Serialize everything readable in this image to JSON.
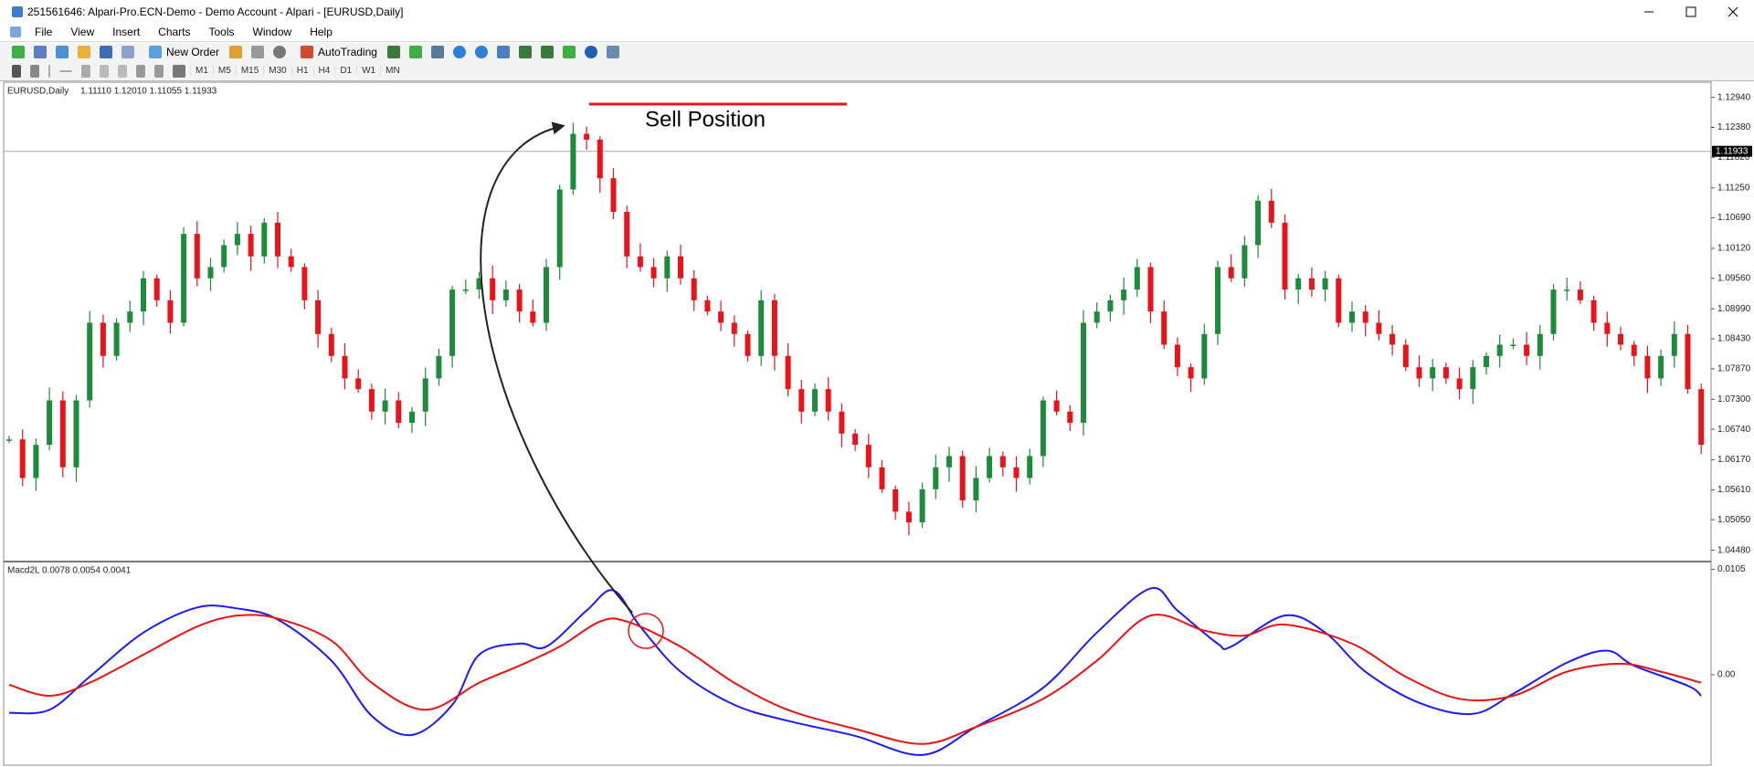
{
  "window": {
    "title": "251561646: Alpari-Pro.ECN-Demo - Demo Account - Alpari - [EURUSD,Daily]",
    "menu": [
      "File",
      "View",
      "Insert",
      "Charts",
      "Tools",
      "Window",
      "Help"
    ],
    "toolbar": {
      "new_order": "New Order",
      "autotrading": "AutoTrading"
    },
    "timeframes": [
      "M1",
      "M5",
      "M15",
      "M30",
      "H1",
      "H4",
      "D1",
      "W1",
      "MN"
    ]
  },
  "chart_data": [
    {
      "type": "candlestick",
      "title": "EURUSD,Daily",
      "ohlc": "1.11110 1.12010 1.11055 1.11933",
      "annotation": "Sell Position",
      "up_color": "#1e8a3c",
      "down_color": "#e8141c",
      "values": [
        1.0655,
        1.0583,
        1.0645,
        1.0728,
        1.0603,
        1.0728,
        1.0873,
        1.0811,
        1.0873,
        1.0894,
        1.0956,
        1.0915,
        1.0873,
        1.1039,
        1.0956,
        1.0977,
        1.1018,
        1.1039,
        1.0997,
        1.106,
        1.0997,
        1.0977,
        1.0915,
        1.0852,
        1.0811,
        1.0769,
        1.0749,
        1.0707,
        1.0728,
        1.0686,
        1.0707,
        1.0769,
        1.0811,
        1.0935,
        1.0935,
        1.0956,
        1.0915,
        1.0935,
        1.0894,
        1.0873,
        1.0977,
        1.1122,
        1.1226,
        1.1215,
        1.1143,
        1.108,
        1.0997,
        1.0977,
        1.0956,
        1.0997,
        1.0956,
        1.0915,
        1.0894,
        1.0873,
        1.0852,
        1.0811,
        1.0915,
        1.0811,
        1.0749,
        1.0707,
        1.0749,
        1.0707,
        1.0666,
        1.0645,
        1.0603,
        1.0562,
        1.052,
        1.05,
        1.0562,
        1.0603,
        1.0624,
        1.0541,
        1.0583,
        1.0624,
        1.0603,
        1.0583,
        1.0624,
        1.0728,
        1.0707,
        1.0686,
        1.0873,
        1.0894,
        1.0915,
        1.0935,
        1.0977,
        1.0894,
        1.0832,
        1.079,
        1.0769,
        1.0852,
        1.0977,
        1.0956,
        1.1018,
        1.1101,
        1.106,
        1.0935,
        1.0956,
        1.0935,
        1.0956,
        1.0873,
        1.0894,
        1.0873,
        1.0852,
        1.0832,
        1.079,
        1.0769,
        1.079,
        1.0769,
        1.0749,
        1.079,
        1.0811,
        1.0832,
        1.0832,
        1.0811,
        1.0852,
        1.0935,
        1.0935,
        1.0915,
        1.0873,
        1.0852,
        1.0832,
        1.0811,
        1.0769,
        1.0811,
        1.0852,
        1.0749,
        1.0645
      ],
      "current_price": {
        "value": 1.11933,
        "label": "1.11933"
      },
      "ylim": [
        1.0432,
        1.1319
      ],
      "yticks": [
        {
          "value": 1.1294,
          "label": "1.12940"
        },
        {
          "value": 1.1238,
          "label": "1.12380"
        },
        {
          "value": 1.1182,
          "label": "1.11820"
        },
        {
          "value": 1.1125,
          "label": "1.11250"
        },
        {
          "value": 1.1069,
          "label": "1.10690"
        },
        {
          "value": 1.1012,
          "label": "1.10120"
        },
        {
          "value": 1.0956,
          "label": "1.09560"
        },
        {
          "value": 1.0899,
          "label": "1.08990"
        },
        {
          "value": 1.0843,
          "label": "1.08430"
        },
        {
          "value": 1.0787,
          "label": "1.07870"
        },
        {
          "value": 1.073,
          "label": "1.07300"
        },
        {
          "value": 1.0674,
          "label": "1.06740"
        },
        {
          "value": 1.0617,
          "label": "1.06170"
        },
        {
          "value": 1.0561,
          "label": "1.05610"
        },
        {
          "value": 1.0505,
          "label": "1.05050"
        },
        {
          "value": 1.0448,
          "label": "1.04480"
        }
      ]
    },
    {
      "type": "line",
      "title": "Macd2L 0.0078 0.0054 0.0041",
      "series": [
        {
          "color": "#1a1aff",
          "x": [
            0,
            3,
            6,
            10,
            14,
            17,
            20,
            24,
            27,
            30,
            33,
            35,
            38,
            40,
            43,
            45,
            47,
            50,
            54,
            58,
            63,
            68,
            72,
            77,
            81,
            85,
            87,
            90,
            91,
            95,
            98,
            101,
            105,
            109,
            112,
            116,
            119,
            121,
            125,
            126
          ],
          "values": [
            -0.0038,
            -0.0035,
            -0.0002,
            0.0042,
            0.0067,
            0.0066,
            0.0055,
            0.0014,
            -0.0041,
            -0.006,
            -0.003,
            0.002,
            0.0031,
            0.0028,
            0.0064,
            0.0084,
            0.0048,
            0.0003,
            -0.003,
            -0.0046,
            -0.0061,
            -0.008,
            -0.0052,
            -0.0013,
            0.0042,
            0.0086,
            0.0064,
            0.0031,
            0.0028,
            0.0059,
            0.0042,
            0.0003,
            -0.0028,
            -0.0039,
            -0.0019,
            0.0012,
            0.0024,
            0.0009,
            -0.0011,
            -0.0021
          ]
        },
        {
          "color": "#ee1111",
          "x": [
            0,
            3,
            6,
            10,
            14,
            17,
            20,
            24,
            27,
            31,
            35,
            38,
            41,
            44,
            46,
            50,
            54,
            58,
            63,
            68,
            72,
            77,
            81,
            85,
            89,
            92,
            95,
            100,
            104,
            108,
            112,
            116,
            120,
            123,
            126
          ],
          "values": [
            -0.001,
            -0.0021,
            -0.0008,
            0.002,
            0.0048,
            0.0059,
            0.0056,
            0.0034,
            -0.0008,
            -0.0035,
            -0.0008,
            0.0009,
            0.0028,
            0.0053,
            0.0053,
            0.0028,
            -0.0008,
            -0.0035,
            -0.0054,
            -0.0069,
            -0.0052,
            -0.0024,
            0.0014,
            0.0059,
            0.0044,
            0.0039,
            0.005,
            0.0031,
            -0.0002,
            -0.0024,
            -0.0021,
            0.0003,
            0.0011,
            0.0003,
            -0.0008
          ]
        }
      ],
      "ylim": [
        -0.0092,
        0.0111
      ],
      "yticks": [
        0.0105,
        {
          "value": 0,
          "label": "0.00"
        }
      ]
    }
  ]
}
